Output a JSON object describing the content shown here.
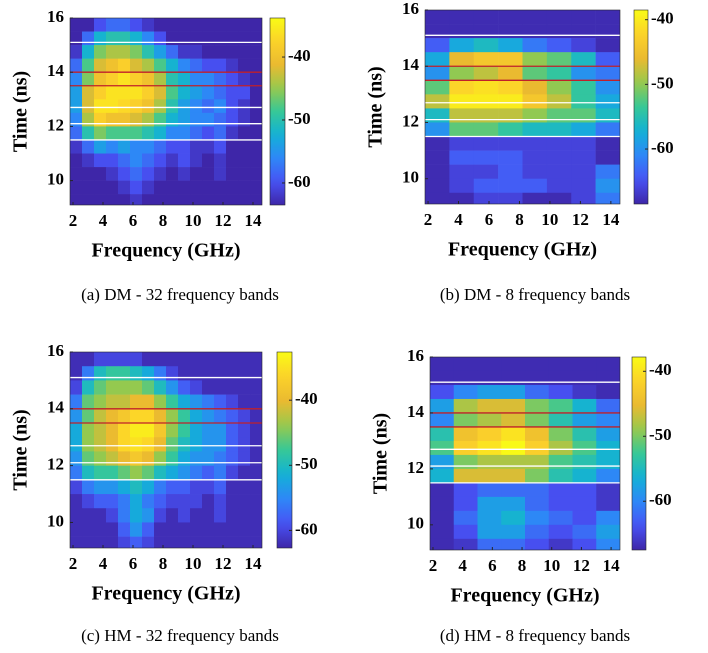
{
  "chart_data": [
    {
      "type": "heatmap",
      "caption": "(a) DM - 32 frequency bands",
      "xlabel": "Frequency (GHz)",
      "ylabel": "Time (ns)",
      "colormap": "parula",
      "xlim": [
        1.8,
        14.6
      ],
      "ylim": [
        9.1,
        16
      ],
      "xticks": [
        2,
        4,
        6,
        8,
        10,
        12,
        14
      ],
      "yticks": [
        10,
        12,
        14,
        16
      ],
      "clim": [
        -63.5,
        -33.8
      ],
      "cticks": [
        -40,
        -50,
        -60
      ],
      "x_edges": [
        1.8,
        2.6,
        3.4,
        4.2,
        5.0,
        5.8,
        6.6,
        7.4,
        8.2,
        9.0,
        9.8,
        10.6,
        11.4,
        12.2,
        13.0,
        13.8,
        14.6
      ],
      "y_edges": [
        16,
        15.5,
        15,
        14.5,
        14,
        13.5,
        13,
        12.5,
        12,
        11.5,
        11,
        10.5,
        10,
        9.5,
        9
      ],
      "values": [
        [
          -64,
          -64,
          -60,
          -58,
          -58,
          -60,
          -62,
          -64,
          -64,
          -64,
          -64,
          -64,
          -64,
          -64,
          -64,
          -64
        ],
        [
          -64,
          -58,
          -52,
          -50,
          -50,
          -52,
          -56,
          -60,
          -64,
          -64,
          -64,
          -64,
          -64,
          -64,
          -64,
          -64
        ],
        [
          -62,
          -52,
          -46,
          -44,
          -44,
          -46,
          -50,
          -54,
          -58,
          -62,
          -62,
          -64,
          -64,
          -64,
          -64,
          -64
        ],
        [
          -58,
          -48,
          -42,
          -40,
          -38,
          -42,
          -44,
          -48,
          -52,
          -56,
          -58,
          -60,
          -60,
          -62,
          -64,
          -64
        ],
        [
          -56,
          -46,
          -40,
          -38,
          -36,
          -38,
          -40,
          -44,
          -50,
          -52,
          -56,
          -56,
          -58,
          -60,
          -62,
          -64
        ],
        [
          -54,
          -42,
          -38,
          -36,
          -36,
          -36,
          -38,
          -42,
          -48,
          -52,
          -54,
          -56,
          -58,
          -60,
          -60,
          -64
        ],
        [
          -54,
          -42,
          -36,
          -36,
          -37,
          -38,
          -40,
          -44,
          -50,
          -54,
          -56,
          -58,
          -56,
          -60,
          -62,
          -64
        ],
        [
          -56,
          -44,
          -38,
          -40,
          -40,
          -42,
          -44,
          -48,
          -52,
          -54,
          -56,
          -56,
          -58,
          -60,
          -62,
          -64
        ],
        [
          -58,
          -50,
          -46,
          -48,
          -48,
          -48,
          -50,
          -52,
          -56,
          -56,
          -58,
          -60,
          -58,
          -62,
          -64,
          -64
        ],
        [
          -62,
          -58,
          -54,
          -56,
          -54,
          -56,
          -56,
          -58,
          -60,
          -60,
          -62,
          -62,
          -60,
          -64,
          -64,
          -64
        ],
        [
          -64,
          -62,
          -60,
          -60,
          -58,
          -56,
          -58,
          -60,
          -62,
          -60,
          -62,
          -64,
          -62,
          -64,
          -64,
          -64
        ],
        [
          -64,
          -64,
          -64,
          -62,
          -60,
          -58,
          -60,
          -62,
          -64,
          -62,
          -64,
          -64,
          -62,
          -64,
          -64,
          -64
        ],
        [
          -64,
          -64,
          -64,
          -64,
          -62,
          -60,
          -62,
          -64,
          -64,
          -64,
          -64,
          -64,
          -64,
          -64,
          -64,
          -64
        ],
        [
          -64,
          -64,
          -64,
          -64,
          -64,
          -62,
          -64,
          -64,
          -64,
          -64,
          -64,
          -64,
          -64,
          -64,
          -64,
          -64
        ]
      ],
      "hlines": [
        {
          "value": 15.1,
          "color": "#ffffff"
        },
        {
          "value": 14.0,
          "color": "#c0202a"
        },
        {
          "value": 13.5,
          "color": "#c0202a"
        },
        {
          "value": 12.7,
          "color": "#ffffff"
        },
        {
          "value": 12.1,
          "color": "#ffffff"
        },
        {
          "value": 11.5,
          "color": "#ffffff"
        }
      ]
    },
    {
      "type": "heatmap",
      "caption": "(b) DM - 8 frequency bands",
      "xlabel": "Frequency (GHz)",
      "ylabel": "Time (ns)",
      "colormap": "parula",
      "xlim": [
        1.8,
        14.6
      ],
      "ylim": [
        9.1,
        16
      ],
      "xticks": [
        2,
        4,
        6,
        8,
        10,
        12,
        14
      ],
      "yticks": [
        10,
        12,
        14,
        16
      ],
      "clim": [
        -68.5,
        -38.5
      ],
      "cticks": [
        -40,
        -50,
        -60
      ],
      "x_edges": [
        1.8,
        3.4,
        5.0,
        6.6,
        8.2,
        9.8,
        11.4,
        13.0,
        14.6
      ],
      "y_edges": [
        16,
        15.5,
        15,
        14.5,
        14,
        13.5,
        13,
        12.5,
        12,
        11.5,
        11,
        10.5,
        10,
        9.5,
        9
      ],
      "values": [
        [
          -68,
          -68,
          -68,
          -68,
          -68,
          -68,
          -68,
          -68
        ],
        [
          -68,
          -68,
          -68,
          -68,
          -68,
          -68,
          -68,
          -68
        ],
        [
          -64,
          -58,
          -56,
          -58,
          -62,
          -64,
          -66,
          -68
        ],
        [
          -58,
          -46,
          -44,
          -44,
          -50,
          -52,
          -56,
          -64
        ],
        [
          -60,
          -50,
          -48,
          -46,
          -52,
          -54,
          -60,
          -62
        ],
        [
          -52,
          -42,
          -41,
          -42,
          -46,
          -50,
          -54,
          -60
        ],
        [
          -48,
          -40,
          -40,
          -40,
          -44,
          -48,
          -54,
          -58
        ],
        [
          -56,
          -48,
          -48,
          -48,
          -50,
          -52,
          -52,
          -56
        ],
        [
          -60,
          -52,
          -52,
          -54,
          -56,
          -56,
          -58,
          -62
        ],
        [
          -68,
          -66,
          -66,
          -66,
          -66,
          -66,
          -66,
          -68
        ],
        [
          -68,
          -64,
          -64,
          -64,
          -66,
          -66,
          -66,
          -68
        ],
        [
          -68,
          -66,
          -66,
          -64,
          -66,
          -66,
          -66,
          -62
        ],
        [
          -68,
          -66,
          -64,
          -64,
          -64,
          -66,
          -66,
          -60
        ],
        [
          -68,
          -68,
          -66,
          -66,
          -68,
          -68,
          -66,
          -62
        ]
      ],
      "hlines": [
        {
          "value": 15.1,
          "color": "#ffffff"
        },
        {
          "value": 14.0,
          "color": "#c0202a"
        },
        {
          "value": 13.5,
          "color": "#c0202a"
        },
        {
          "value": 12.7,
          "color": "#ffffff"
        },
        {
          "value": 12.1,
          "color": "#ffffff"
        },
        {
          "value": 11.5,
          "color": "#ffffff"
        }
      ]
    },
    {
      "type": "heatmap",
      "caption": "(c) HM - 32 frequency bands",
      "xlabel": "Frequency (GHz)",
      "ylabel": "Time (ns)",
      "colormap": "parula",
      "xlim": [
        1.8,
        14.6
      ],
      "ylim": [
        9.1,
        16
      ],
      "xticks": [
        2,
        4,
        6,
        8,
        10,
        12,
        14
      ],
      "yticks": [
        10,
        12,
        14,
        16
      ],
      "clim": [
        -62.7,
        -32.6
      ],
      "cticks": [
        -40,
        -50,
        -60
      ],
      "x_edges": [
        1.8,
        2.6,
        3.4,
        4.2,
        5.0,
        5.8,
        6.6,
        7.4,
        8.2,
        9.0,
        9.8,
        10.6,
        11.4,
        12.2,
        13.0,
        13.8,
        14.6
      ],
      "y_edges": [
        16,
        15.5,
        15,
        14.5,
        14,
        13.5,
        13,
        12.5,
        12,
        11.5,
        11,
        10.5,
        10,
        9.5,
        9
      ],
      "values": [
        [
          -62,
          -62,
          -60,
          -60,
          -60,
          -60,
          -62,
          -62,
          -62,
          -62,
          -62,
          -62,
          -62,
          -62,
          -62,
          -62
        ],
        [
          -62,
          -56,
          -50,
          -48,
          -48,
          -50,
          -52,
          -56,
          -60,
          -62,
          -62,
          -62,
          -62,
          -62,
          -62,
          -62
        ],
        [
          -60,
          -50,
          -46,
          -44,
          -44,
          -44,
          -46,
          -50,
          -54,
          -58,
          -60,
          -62,
          -62,
          -62,
          -62,
          -62
        ],
        [
          -56,
          -46,
          -44,
          -42,
          -42,
          -40,
          -40,
          -44,
          -48,
          -52,
          -54,
          -56,
          -58,
          -60,
          -62,
          -62
        ],
        [
          -54,
          -46,
          -42,
          -40,
          -38,
          -36,
          -36,
          -40,
          -44,
          -48,
          -52,
          -54,
          -56,
          -58,
          -60,
          -62
        ],
        [
          -52,
          -44,
          -42,
          -40,
          -36,
          -34,
          -34,
          -38,
          -44,
          -48,
          -52,
          -54,
          -54,
          -58,
          -60,
          -62
        ],
        [
          -52,
          -44,
          -42,
          -40,
          -36,
          -35,
          -36,
          -40,
          -46,
          -50,
          -52,
          -54,
          -54,
          -58,
          -60,
          -62
        ],
        [
          -54,
          -46,
          -44,
          -42,
          -40,
          -38,
          -40,
          -44,
          -48,
          -52,
          -54,
          -54,
          -56,
          -58,
          -60,
          -62
        ],
        [
          -56,
          -50,
          -48,
          -48,
          -46,
          -44,
          -46,
          -50,
          -52,
          -54,
          -56,
          -58,
          -56,
          -60,
          -62,
          -62
        ],
        [
          -60,
          -56,
          -54,
          -54,
          -52,
          -50,
          -52,
          -56,
          -58,
          -58,
          -60,
          -60,
          -58,
          -62,
          -62,
          -62
        ],
        [
          -62,
          -60,
          -58,
          -58,
          -56,
          -52,
          -56,
          -58,
          -60,
          -60,
          -60,
          -62,
          -60,
          -62,
          -62,
          -62
        ],
        [
          -62,
          -62,
          -62,
          -60,
          -56,
          -52,
          -54,
          -60,
          -62,
          -60,
          -62,
          -62,
          -60,
          -62,
          -62,
          -62
        ],
        [
          -62,
          -62,
          -62,
          -62,
          -58,
          -54,
          -58,
          -62,
          -62,
          -62,
          -62,
          -62,
          -62,
          -62,
          -62,
          -62
        ],
        [
          -62,
          -62,
          -62,
          -62,
          -60,
          -58,
          -60,
          -62,
          -62,
          -62,
          -62,
          -62,
          -62,
          -62,
          -62,
          -62
        ]
      ],
      "hlines": [
        {
          "value": 15.1,
          "color": "#ffffff"
        },
        {
          "value": 14.0,
          "color": "#c0202a"
        },
        {
          "value": 13.5,
          "color": "#c0202a"
        },
        {
          "value": 12.7,
          "color": "#ffffff"
        },
        {
          "value": 12.1,
          "color": "#ffffff"
        },
        {
          "value": 11.5,
          "color": "#ffffff"
        }
      ]
    },
    {
      "type": "heatmap",
      "caption": "(d) HM - 8 frequency bands",
      "xlabel": "Frequency (GHz)",
      "ylabel": "Time (ns)",
      "colormap": "parula",
      "xlim": [
        1.8,
        14.6
      ],
      "ylim": [
        9.1,
        16
      ],
      "xticks": [
        2,
        4,
        6,
        8,
        10,
        12,
        14
      ],
      "yticks": [
        10,
        12,
        14,
        16
      ],
      "clim": [
        -67.5,
        -37.8
      ],
      "cticks": [
        -40,
        -50,
        -60
      ],
      "x_edges": [
        1.8,
        3.4,
        5.0,
        6.6,
        8.2,
        9.8,
        11.4,
        13.0,
        14.6
      ],
      "y_edges": [
        16,
        15.5,
        15,
        14.5,
        14,
        13.5,
        13,
        12.5,
        12,
        11.5,
        11,
        10.5,
        10,
        9.5,
        9
      ],
      "values": [
        [
          -67,
          -67,
          -67,
          -67,
          -67,
          -67,
          -67,
          -67
        ],
        [
          -67,
          -67,
          -67,
          -67,
          -67,
          -67,
          -67,
          -67
        ],
        [
          -64,
          -60,
          -58,
          -58,
          -62,
          -64,
          -66,
          -67
        ],
        [
          -58,
          -48,
          -46,
          -46,
          -50,
          -52,
          -56,
          -62
        ],
        [
          -60,
          -50,
          -48,
          -46,
          -50,
          -54,
          -58,
          -60
        ],
        [
          -54,
          -44,
          -42,
          -40,
          -44,
          -50,
          -54,
          -58
        ],
        [
          -52,
          -42,
          -40,
          -38,
          -42,
          -48,
          -52,
          -56
        ],
        [
          -58,
          -50,
          -48,
          -48,
          -48,
          -52,
          -54,
          -56
        ],
        [
          -56,
          -46,
          -46,
          -46,
          -50,
          -54,
          -56,
          -60
        ],
        [
          -67,
          -64,
          -62,
          -62,
          -62,
          -64,
          -64,
          -66
        ],
        [
          -67,
          -64,
          -58,
          -58,
          -62,
          -64,
          -64,
          -66
        ],
        [
          -67,
          -62,
          -58,
          -56,
          -60,
          -62,
          -64,
          -60
        ],
        [
          -67,
          -64,
          -58,
          -58,
          -62,
          -64,
          -62,
          -58
        ],
        [
          -67,
          -66,
          -62,
          -62,
          -64,
          -66,
          -64,
          -60
        ]
      ],
      "hlines": [
        {
          "value": 15.1,
          "color": "#ffffff"
        },
        {
          "value": 14.0,
          "color": "#c0202a"
        },
        {
          "value": 13.5,
          "color": "#c0202a"
        },
        {
          "value": 12.7,
          "color": "#ffffff"
        },
        {
          "value": 12.1,
          "color": "#ffffff"
        },
        {
          "value": 11.5,
          "color": "#ffffff"
        }
      ]
    }
  ]
}
